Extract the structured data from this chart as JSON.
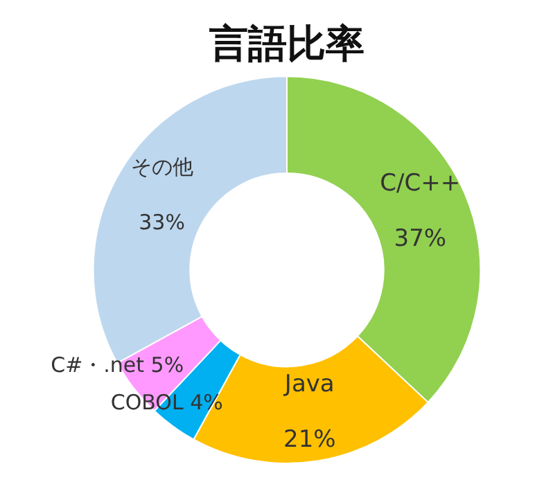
{
  "chart_data": {
    "type": "donut",
    "title": "言語比率",
    "categories": [
      "C/C++",
      "Java",
      "COBOL",
      "C#・.net",
      "その他"
    ],
    "values": [
      37,
      21,
      4,
      5,
      33
    ],
    "colors": [
      "#92d050",
      "#ffc000",
      "#00b0f0",
      "#ff99ff",
      "#bdd7ee"
    ],
    "value_labels": [
      "37%",
      "21%",
      "4%",
      "5%",
      "33%"
    ],
    "legend": false
  }
}
